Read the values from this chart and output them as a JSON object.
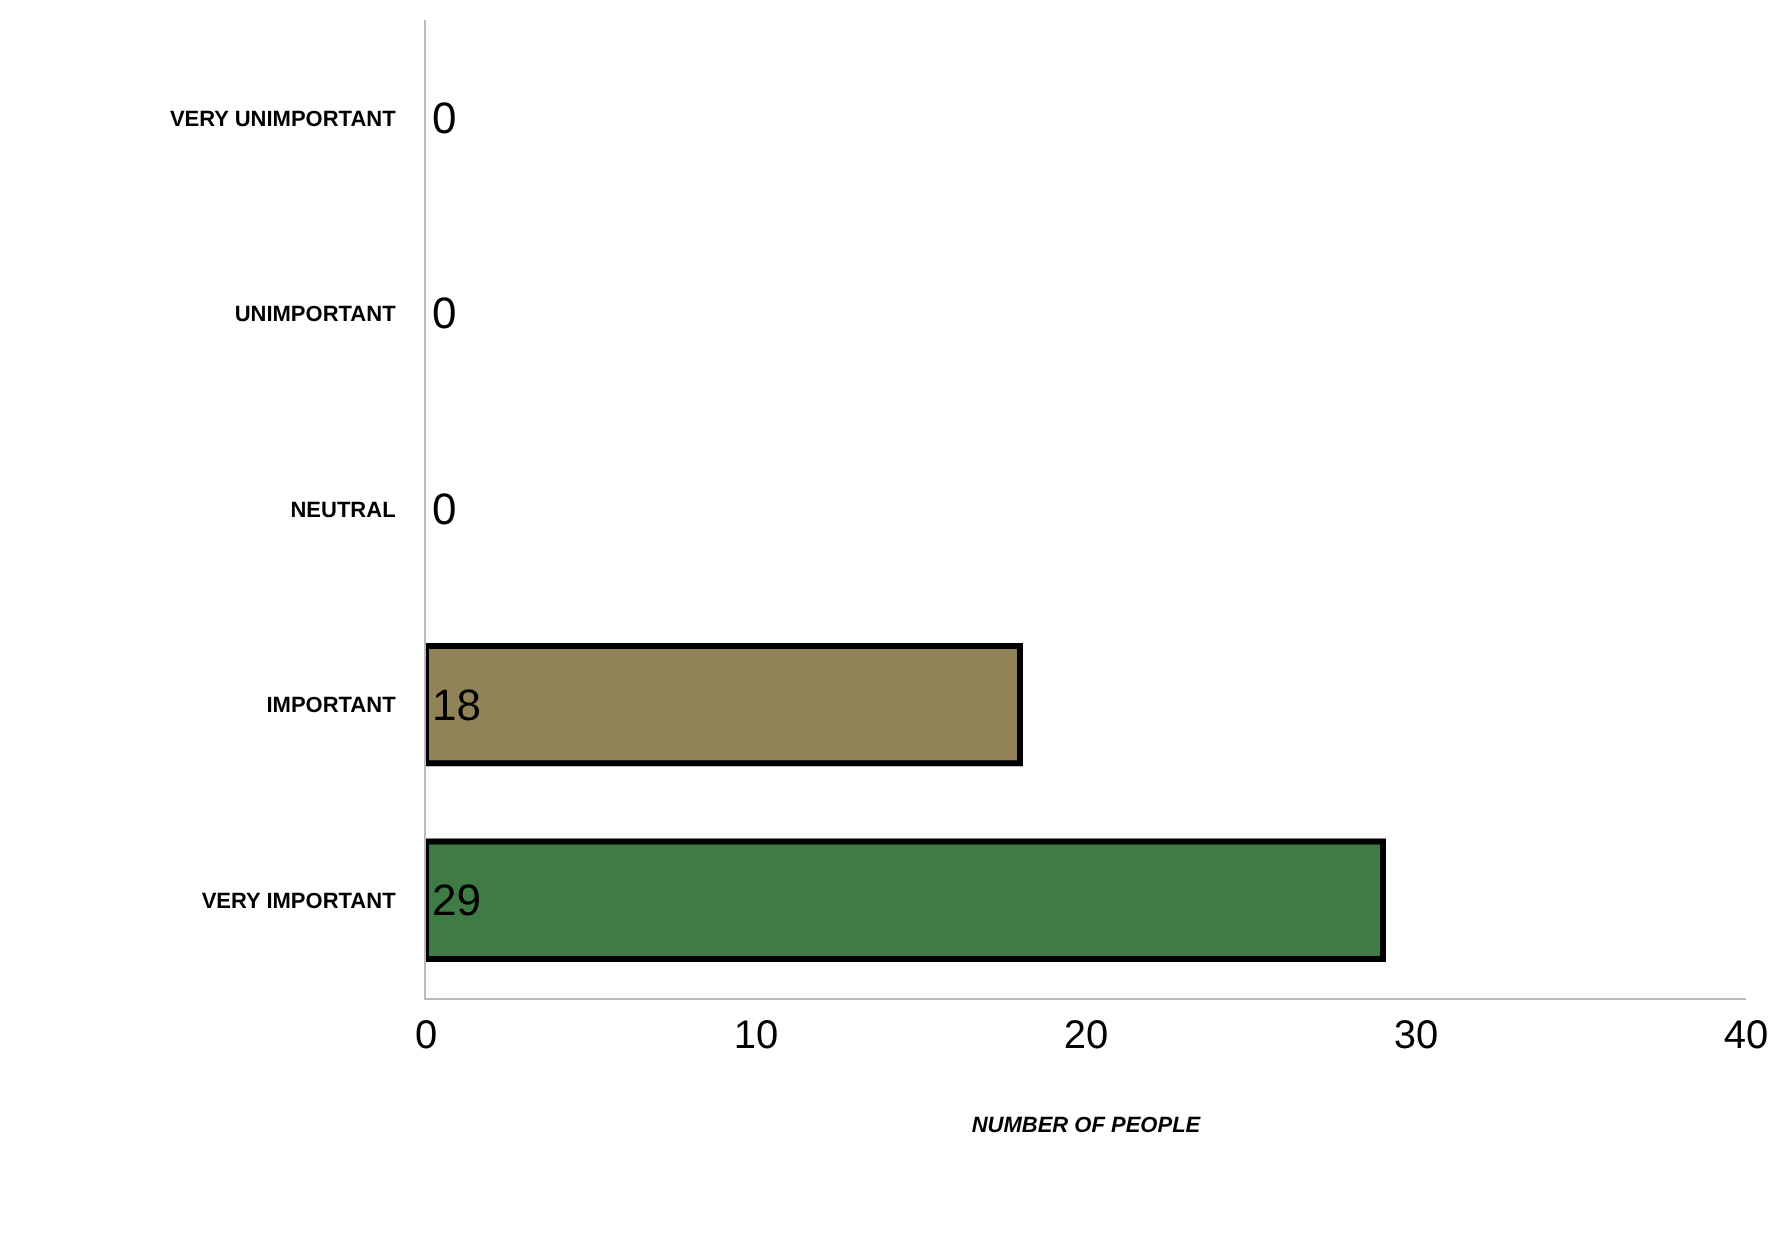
{
  "chart_data": {
    "type": "bar",
    "orientation": "horizontal",
    "xlabel": "NUMBER OF PEOPLE",
    "categories": [
      "VERY UNIMPORTANT",
      "UNIMPORTANT",
      "NEUTRAL",
      "IMPORTANT",
      "VERY IMPORTANT"
    ],
    "values": [
      0,
      0,
      0,
      18,
      29
    ],
    "colors": [
      "#3e7b45",
      "#3e7b45",
      "#3e7b45",
      "#8f8357",
      "#3e7b45"
    ],
    "xlim": [
      0,
      40
    ],
    "xticks": [
      0,
      10,
      20,
      30,
      40
    ],
    "data_labels": true
  }
}
